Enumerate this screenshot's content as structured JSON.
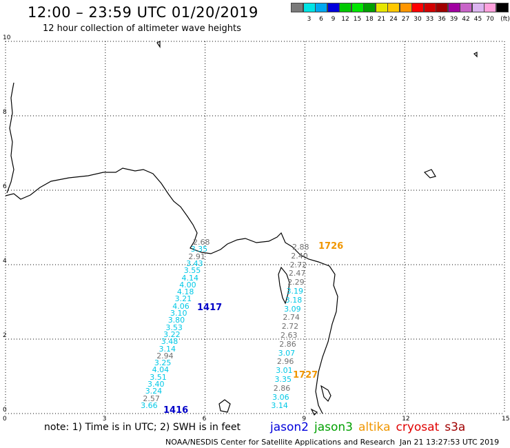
{
  "header": {
    "title": "12:00 – 23:59 UTC 01/20/2019",
    "subtitle": "12 hour collection of altimeter wave heights"
  },
  "color_scale": {
    "unit": "(ft)",
    "swatches": [
      {
        "color": "#7a7a7a",
        "label": ""
      },
      {
        "color": "#00e4e4",
        "label": "3"
      },
      {
        "color": "#00a8f0",
        "label": "6"
      },
      {
        "color": "#0000dc",
        "label": "9"
      },
      {
        "color": "#00c800",
        "label": "12"
      },
      {
        "color": "#00e600",
        "label": "15"
      },
      {
        "color": "#00a000",
        "label": "18"
      },
      {
        "color": "#e6e600",
        "label": "21"
      },
      {
        "color": "#ffc800",
        "label": "24"
      },
      {
        "color": "#ff9600",
        "label": "27"
      },
      {
        "color": "#ff0000",
        "label": "30"
      },
      {
        "color": "#d20000",
        "label": "33"
      },
      {
        "color": "#a00000",
        "label": "36"
      },
      {
        "color": "#a000a0",
        "label": "39"
      },
      {
        "color": "#c864c8",
        "label": "42"
      },
      {
        "color": "#dcb4f0",
        "label": "45"
      },
      {
        "color": "#ffa0dc",
        "label": "70"
      },
      {
        "color": "#000000",
        "label": ""
      }
    ]
  },
  "axes": {
    "x_ticks": [
      "0",
      "3",
      "6",
      "9",
      "12",
      "15"
    ],
    "y_ticks": [
      "0",
      "2",
      "4",
      "6",
      "8",
      "10"
    ],
    "x_range": [
      0,
      15
    ],
    "y_range": [
      0,
      10
    ]
  },
  "passes": [
    {
      "label": "1417",
      "color": "#0000c8"
    },
    {
      "label": "1416",
      "color": "#0000c8"
    },
    {
      "label": "1726",
      "color": "#f09600"
    },
    {
      "label": "1727",
      "color": "#f09600"
    }
  ],
  "swh_west": [
    {
      "v": "2.68",
      "c": "#707070"
    },
    {
      "v": "3.35",
      "c": "#00c8e6"
    },
    {
      "v": "2.91",
      "c": "#707070"
    },
    {
      "v": "3.43",
      "c": "#00c8e6"
    },
    {
      "v": "3.55",
      "c": "#00c8e6"
    },
    {
      "v": "4.14",
      "c": "#00c8e6"
    },
    {
      "v": "4.00",
      "c": "#00c8e6"
    },
    {
      "v": "4.18",
      "c": "#00c8e6"
    },
    {
      "v": "3.21",
      "c": "#00c8e6"
    },
    {
      "v": "4.06",
      "c": "#00c8e6"
    },
    {
      "v": "3.10",
      "c": "#00c8e6"
    },
    {
      "v": "3.80",
      "c": "#00c8e6"
    },
    {
      "v": "3.53",
      "c": "#00c8e6"
    },
    {
      "v": "3.22",
      "c": "#00c8e6"
    },
    {
      "v": "3.48",
      "c": "#00c8e6"
    },
    {
      "v": "3.14",
      "c": "#00c8e6"
    },
    {
      "v": "2.94",
      "c": "#707070"
    },
    {
      "v": "3.25",
      "c": "#00c8e6"
    },
    {
      "v": "4.04",
      "c": "#00c8e6"
    },
    {
      "v": "3.51",
      "c": "#00c8e6"
    },
    {
      "v": "3.40",
      "c": "#00c8e6"
    },
    {
      "v": "3.24",
      "c": "#00c8e6"
    },
    {
      "v": "2.57",
      "c": "#707070"
    },
    {
      "v": "3.66",
      "c": "#00c8e6"
    }
  ],
  "swh_east": [
    {
      "v": "2.88",
      "c": "#707070"
    },
    {
      "v": "2.40",
      "c": "#707070"
    },
    {
      "v": "2.72",
      "c": "#707070"
    },
    {
      "v": "2.47",
      "c": "#707070"
    },
    {
      "v": "2.29",
      "c": "#707070"
    },
    {
      "v": "3.19",
      "c": "#00c8e6"
    },
    {
      "v": "3.18",
      "c": "#00c8e6"
    },
    {
      "v": "3.09",
      "c": "#00c8e6"
    },
    {
      "v": "2.74",
      "c": "#707070"
    },
    {
      "v": "2.72",
      "c": "#707070"
    },
    {
      "v": "2.63",
      "c": "#707070"
    },
    {
      "v": "2.86",
      "c": "#707070"
    },
    {
      "v": "3.07",
      "c": "#00c8e6"
    },
    {
      "v": "2.96",
      "c": "#707070"
    },
    {
      "v": "3.01",
      "c": "#00c8e6"
    },
    {
      "v": "3.35",
      "c": "#00c8e6"
    },
    {
      "v": "2.86",
      "c": "#707070"
    },
    {
      "v": "3.06",
      "c": "#00c8e6"
    },
    {
      "v": "3.14",
      "c": "#00c8e6"
    }
  ],
  "footer": {
    "note": "note:  1) Time is in UTC;  2) SWH is in feet",
    "satellites": [
      {
        "name": "jason2",
        "color": "#0000dc"
      },
      {
        "name": "jason3",
        "color": "#00a000"
      },
      {
        "name": "altika",
        "color": "#f09600"
      },
      {
        "name": "cryosat",
        "color": "#e00000"
      },
      {
        "name": "s3a",
        "color": "#a00000"
      }
    ],
    "credit": "NOAA/NESDIS Center for Satellite Applications and Research",
    "timestamp": "Jan 21 13:27:53 UTC 2019"
  }
}
